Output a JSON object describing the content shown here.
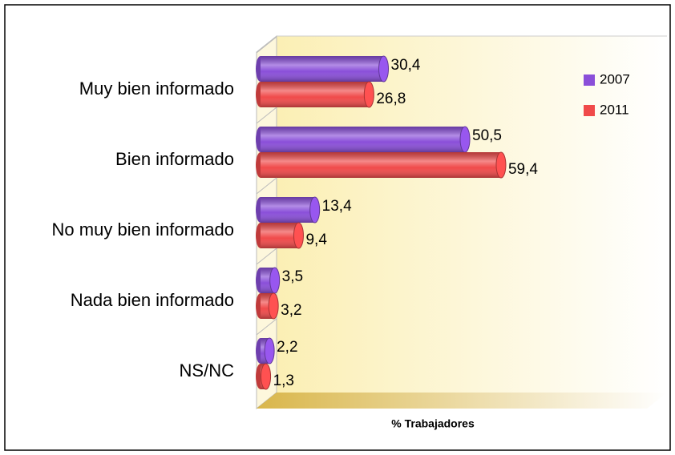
{
  "chart_data": {
    "type": "bar",
    "orientation": "horizontal",
    "x_label": "% Trabajadores",
    "categories": [
      "Muy bien informado",
      "Bien informado",
      "No muy bien informado",
      "Nada bien informado",
      "NS/NC"
    ],
    "series": [
      {
        "name": "2007",
        "color": "#8a4fd9",
        "values": [
          30.4,
          50.5,
          13.4,
          3.5,
          2.2
        ],
        "value_labels": [
          "30,4",
          "50,5",
          "13,4",
          "3,5",
          "2,2"
        ]
      },
      {
        "name": "2011",
        "color": "#f04a4a",
        "values": [
          26.8,
          59.4,
          9.4,
          3.2,
          1.3
        ],
        "value_labels": [
          "26,8",
          "59,4",
          "9,4",
          "3,2",
          "1,3"
        ]
      }
    ],
    "xlim": [
      0,
      100
    ],
    "legend": "upper right"
  }
}
